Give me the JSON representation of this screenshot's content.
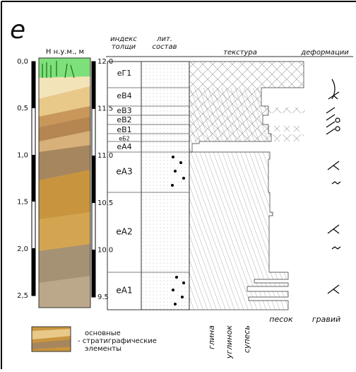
{
  "panel_label": "е",
  "altitude_label": "Н н.у.м., м",
  "depth_ticks": [
    "0,0",
    "0,5",
    "1,0",
    "1,5",
    "2,0",
    "2,5"
  ],
  "altitude_ticks": [
    "12.0",
    "11.5",
    "11.0",
    "10.5",
    "10.0",
    "9.5"
  ],
  "columns": {
    "index": [
      "индекс",
      "толщи"
    ],
    "lithology": [
      "лит.",
      "состав"
    ],
    "texture": "текстура",
    "deformation": "деформации"
  },
  "units": [
    "еГ1",
    "еВ4",
    "еВ3",
    "еВ2",
    "еВ1",
    "еБ2",
    "еА4",
    "еА3",
    "еА2",
    "еА1"
  ],
  "grain_sizes": [
    "глина",
    "углинок",
    "супесь",
    "песок",
    "гравий"
  ],
  "legend": [
    "основные",
    "- стратиграфические",
    "элементы"
  ]
}
